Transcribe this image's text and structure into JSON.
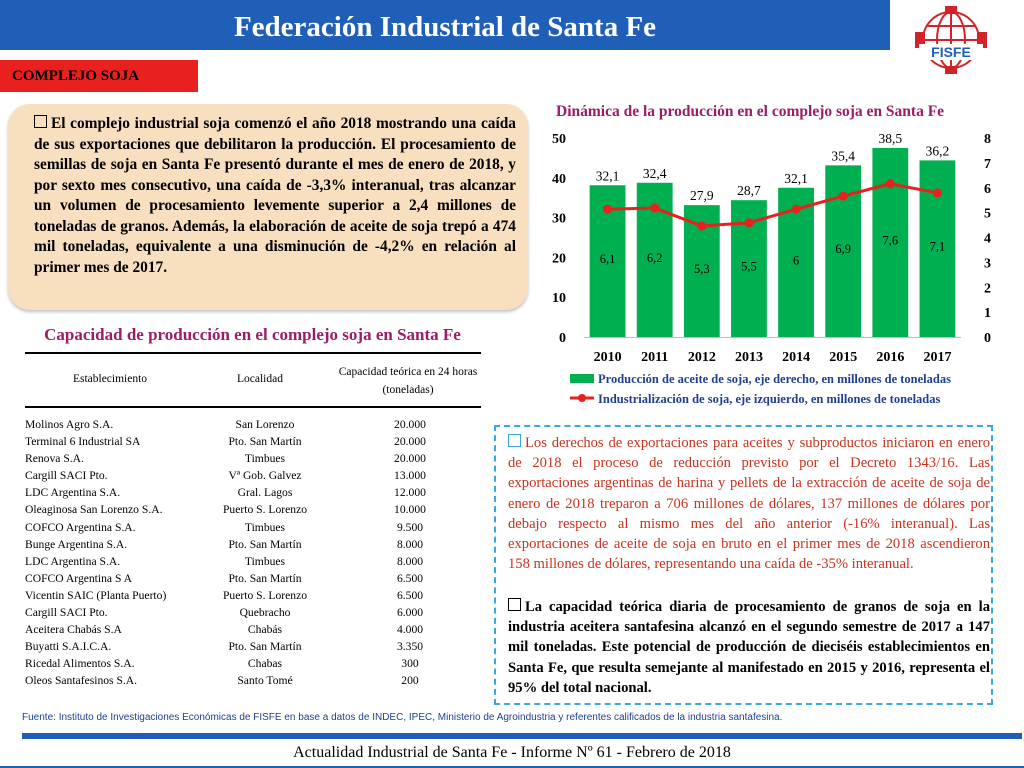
{
  "header": {
    "title": "Federación Industrial de Santa Fe"
  },
  "logo": {
    "text": "FISFE",
    "icon": "fisfe-logo-icon",
    "color": "#d2232a"
  },
  "section": {
    "label": "COMPLEJO SOJA"
  },
  "summary": {
    "text": "El complejo industrial soja comenzó el año 2018 mostrando una caída de sus exportaciones que debilitaron la producción. El procesamiento de semillas de soja en Santa Fe presentó durante el mes de enero de 2018, y por sexto mes consecutivo, una caída de -3,3% interanual, tras alcanzar un volumen de procesamiento levemente superior a 2,4 millones de toneladas de granos. Además, la elaboración de aceite de soja trepó a 474 mil toneladas, equivalente a una disminución de -4,2% en relación al primer mes de 2017."
  },
  "table": {
    "title": "Capacidad de producción en el complejo soja en Santa Fe",
    "headers": [
      "Establecimiento",
      "Localidad",
      "Capacidad teórica en 24 horas (toneladas)"
    ],
    "rows": [
      [
        "Molinos Agro S.A.",
        "San Lorenzo",
        "20.000"
      ],
      [
        "Terminal 6 Industrial SA",
        "Pto. San Martín",
        "20.000"
      ],
      [
        "Renova S.A.",
        "Timbues",
        "20.000"
      ],
      [
        "Cargill SACI Pto.",
        "Vª Gob. Galvez",
        "13.000"
      ],
      [
        "LDC Argentina S.A.",
        "Gral. Lagos",
        "12.000"
      ],
      [
        "Oleaginosa San Lorenzo S.A.",
        "Puerto S. Lorenzo",
        "10.000"
      ],
      [
        "COFCO Argentina S.A.",
        "Timbues",
        "9.500"
      ],
      [
        "Bunge Argentina S.A.",
        "Pto. San Martín",
        "8.000"
      ],
      [
        "LDC Argentina S.A.",
        "Timbues",
        "8.000"
      ],
      [
        "COFCO Argentina S A",
        "Pto. San Martín",
        "6.500"
      ],
      [
        "Vicentin SAIC (Planta Puerto)",
        "Puerto S. Lorenzo",
        "6.500"
      ],
      [
        "Cargill SACI Pto.",
        "Quebracho",
        "6.000"
      ],
      [
        "Aceitera Chabás S.A",
        "Chabás",
        "4.000"
      ],
      [
        "Buyatti S.A.I.C.A.",
        "Pto. San Martín",
        "3.350"
      ],
      [
        "Ricedal Alimentos S.A.",
        "Chabas",
        "300"
      ],
      [
        "Oleos Santafesinos S.A.",
        "Santo Tomé",
        "200"
      ]
    ]
  },
  "chart_data": {
    "type": "bar",
    "title": "Dinámica de la producción en el complejo soja en Santa Fe",
    "categories": [
      "2010",
      "2011",
      "2012",
      "2013",
      "2014",
      "2015",
      "2016",
      "2017"
    ],
    "left_axis": {
      "ylim": [
        0,
        50
      ],
      "ticks": [
        "0",
        "10",
        "20",
        "30",
        "40",
        "50"
      ]
    },
    "right_axis": {
      "ylim": [
        0,
        8
      ],
      "ticks": [
        "0",
        "1",
        "2",
        "3",
        "4",
        "5",
        "6",
        "7",
        "8"
      ]
    },
    "series": [
      {
        "name": "Producción de aceite de soja, eje derecho, en millones de toneladas",
        "type": "bar",
        "axis": "right",
        "color": "#00b050",
        "values": [
          6.1,
          6.2,
          5.3,
          5.5,
          6,
          6.9,
          7.6,
          7.1
        ],
        "labels": [
          "6,1",
          "6,2",
          "5,3",
          "5,5",
          "6",
          "6,9",
          "7,6",
          "7,1"
        ]
      },
      {
        "name": "Industrialización de soja, eje izquierdo, en millones de toneladas",
        "type": "line",
        "axis": "left",
        "color": "#e8201e",
        "values": [
          32.1,
          32.4,
          27.9,
          28.7,
          32.1,
          35.4,
          38.5,
          36.2
        ],
        "labels": [
          "32,1",
          "32,4",
          "27,9",
          "28,7",
          "32,1",
          "35,4",
          "38,5",
          "36,2"
        ]
      }
    ],
    "legend_position": "bottom"
  },
  "notes": {
    "paragraph1": "Los derechos de exportaciones para aceites y subproductos iniciaron en enero de 2018 el proceso de reducción previsto por el Decreto 1343/16. Las exportaciones argentinas de harina y pellets de la extracción de aceite de soja de enero de 2018 treparon a 706 millones de dólares, 137 millones de dólares por debajo respecto al mismo mes del año anterior (-16% interanual). Las exportaciones de aceite de soja en bruto en el primer mes de 2018 ascendieron 158 millones de dólares, representando una caída de -35% interanual.",
    "paragraph2": "La capacidad teórica diaria de procesamiento de granos de soja en la industria aceitera santafesina alcanzó en el segundo semestre de 2017 a 147 mil toneladas. Este potencial de producción de dieciséis establecimientos en Santa Fe, que resulta semejante al manifestado en 2015 y 2016, representa el 95% del total nacional."
  },
  "source": "Fuente: Instituto de Investigaciones Económicas de FISFE en base a datos de INDEC, IPEC, Ministerio de Agroindustria y referentes calificados de la industria santafesina.",
  "footer": "Actualidad Industrial de Santa Fe - Informe Nº 61 - Febrero de 2018"
}
